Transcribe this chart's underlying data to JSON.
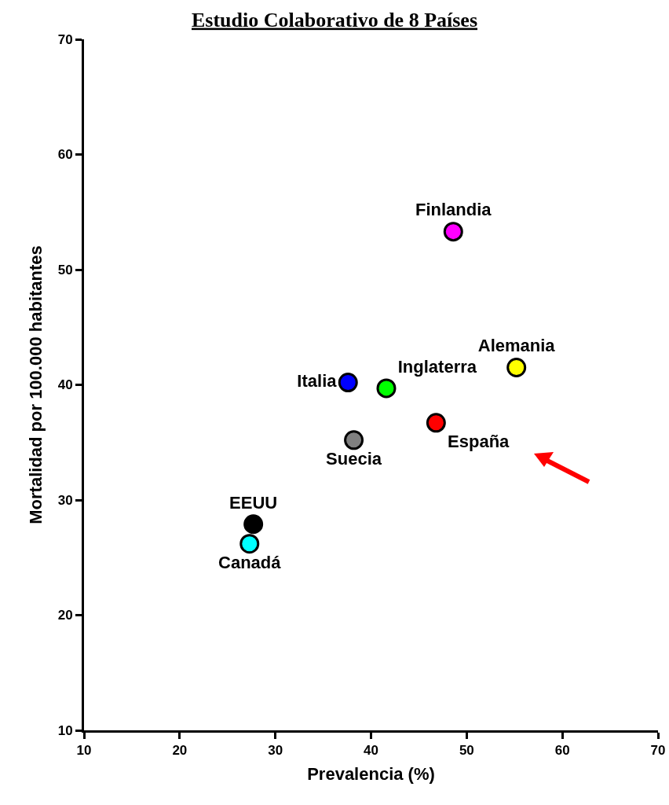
{
  "chart_data": {
    "type": "scatter",
    "title": "Estudio Colaborativo de 8 Países",
    "xlabel": "Prevalencia (%)",
    "ylabel": "Mortalidad por 100.000 habitantes",
    "series": [
      {
        "name": "Finlandia",
        "color": "#ff00ff",
        "x": [
          48.6
        ],
        "values": [
          53.3
        ]
      },
      {
        "name": "Alemania",
        "color": "#ffff00",
        "x": [
          55.2
        ],
        "values": [
          41.5
        ]
      },
      {
        "name": "Italia",
        "color": "#0000ff",
        "x": [
          37.6
        ],
        "values": [
          40.2
        ]
      },
      {
        "name": "Inglaterra",
        "color": "#00ff00",
        "x": [
          41.6
        ],
        "values": [
          39.7
        ]
      },
      {
        "name": "España",
        "color": "#ff0000",
        "x": [
          46.8
        ],
        "values": [
          36.7
        ]
      },
      {
        "name": "Suecia",
        "color": "#808080",
        "x": [
          38.2
        ],
        "values": [
          35.2
        ]
      },
      {
        "name": "EEUU",
        "color": "#000000",
        "x": [
          27.7
        ],
        "values": [
          27.9
        ]
      },
      {
        "name": "Canadá",
        "color": "#00ffff",
        "x": [
          27.3
        ],
        "values": [
          26.2
        ]
      }
    ],
    "xlim": [
      10,
      70
    ],
    "xticks": [
      10,
      20,
      30,
      40,
      50,
      60,
      70
    ],
    "ylim": [
      10,
      70
    ],
    "yticks": [
      10,
      20,
      30,
      40,
      50,
      60,
      70
    ],
    "grid": false,
    "legend": false,
    "marker": "circle"
  }
}
